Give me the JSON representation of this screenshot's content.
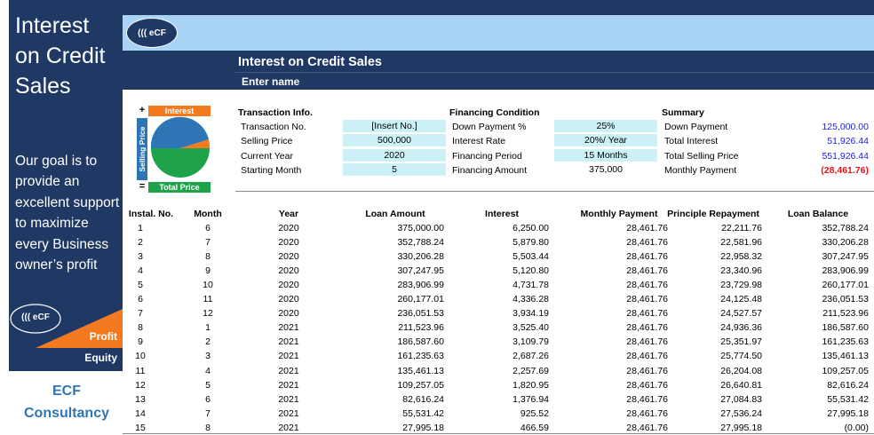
{
  "sidebar": {
    "title": "Interest on Credit Sales",
    "tagline": "Our goal is to provide an excellent support to maximize every Business owner’s profit",
    "logo": "((( eCF",
    "profit": "Profit",
    "equity": "Equity",
    "company": "ECF Consultancy"
  },
  "header": {
    "logo": "((( eCF",
    "title": "Interest on Credit Sales",
    "subtitle": "Enter name"
  },
  "icon": {
    "interest": "Interest",
    "plus": "+",
    "selling_price": "Selling Price",
    "equals": "=",
    "total_price": "Total Price"
  },
  "info": {
    "transaction": {
      "heading": "Transaction Info.",
      "rows": [
        [
          "Transaction No.",
          "[Insert No.]"
        ],
        [
          "Selling Price",
          "500,000"
        ],
        [
          "Current Year",
          "2020"
        ],
        [
          "Starting Month",
          "5"
        ]
      ]
    },
    "financing": {
      "heading": "Financing Condition",
      "rows": [
        [
          "Down Payment %",
          "25%"
        ],
        [
          "Interest Rate",
          "20%/ Year"
        ],
        [
          "Financing Period",
          "15 Months"
        ],
        [
          "Financing Amount",
          "375,000"
        ]
      ]
    },
    "summary": {
      "heading": "Summary",
      "rows": [
        [
          "Down Payment",
          "125,000.00"
        ],
        [
          "Total Interest",
          "51,926.44"
        ],
        [
          "Total Selling Price",
          "551,926.44"
        ],
        [
          "Monthly Payment",
          "(28,461.76)"
        ]
      ]
    }
  },
  "table": {
    "columns": [
      "Instal. No.",
      "Month",
      "Year",
      "Loan Amount",
      "Interest",
      "Monthly Payment",
      "Principle Repayment",
      "Loan Balance"
    ],
    "rows": [
      [
        "1",
        "6",
        "2020",
        "375,000.00",
        "6,250.00",
        "28,461.76",
        "22,211.76",
        "352,788.24"
      ],
      [
        "2",
        "7",
        "2020",
        "352,788.24",
        "5,879.80",
        "28,461.76",
        "22,581.96",
        "330,206.28"
      ],
      [
        "3",
        "8",
        "2020",
        "330,206.28",
        "5,503.44",
        "28,461.76",
        "22,958.32",
        "307,247.95"
      ],
      [
        "4",
        "9",
        "2020",
        "307,247.95",
        "5,120.80",
        "28,461.76",
        "23,340.96",
        "283,906.99"
      ],
      [
        "5",
        "10",
        "2020",
        "283,906.99",
        "4,731.78",
        "28,461.76",
        "23,729.98",
        "260,177.01"
      ],
      [
        "6",
        "11",
        "2020",
        "260,177.01",
        "4,336.28",
        "28,461.76",
        "24,125.48",
        "236,051.53"
      ],
      [
        "7",
        "12",
        "2020",
        "236,051.53",
        "3,934.19",
        "28,461.76",
        "24,527.57",
        "211,523.96"
      ],
      [
        "8",
        "1",
        "2021",
        "211,523.96",
        "3,525.40",
        "28,461.76",
        "24,936.36",
        "186,587.60"
      ],
      [
        "9",
        "2",
        "2021",
        "186,587.60",
        "3,109.79",
        "28,461.76",
        "25,351.97",
        "161,235.63"
      ],
      [
        "10",
        "3",
        "2021",
        "161,235.63",
        "2,687.26",
        "28,461.76",
        "25,774.50",
        "135,461.13"
      ],
      [
        "11",
        "4",
        "2021",
        "135,461.13",
        "2,257.69",
        "28,461.76",
        "26,204.08",
        "109,257.05"
      ],
      [
        "12",
        "5",
        "2021",
        "109,257.05",
        "1,820.95",
        "28,461.76",
        "26,640.81",
        "82,616.24"
      ],
      [
        "13",
        "6",
        "2021",
        "82,616.24",
        "1,376.94",
        "28,461.76",
        "27,084.83",
        "55,531.42"
      ],
      [
        "14",
        "7",
        "2021",
        "55,531.42",
        "925.52",
        "28,461.76",
        "27,536.24",
        "27,995.18"
      ],
      [
        "15",
        "8",
        "2021",
        "27,995.18",
        "466.59",
        "28,461.76",
        "27,995.18",
        "(0.00)"
      ]
    ]
  }
}
